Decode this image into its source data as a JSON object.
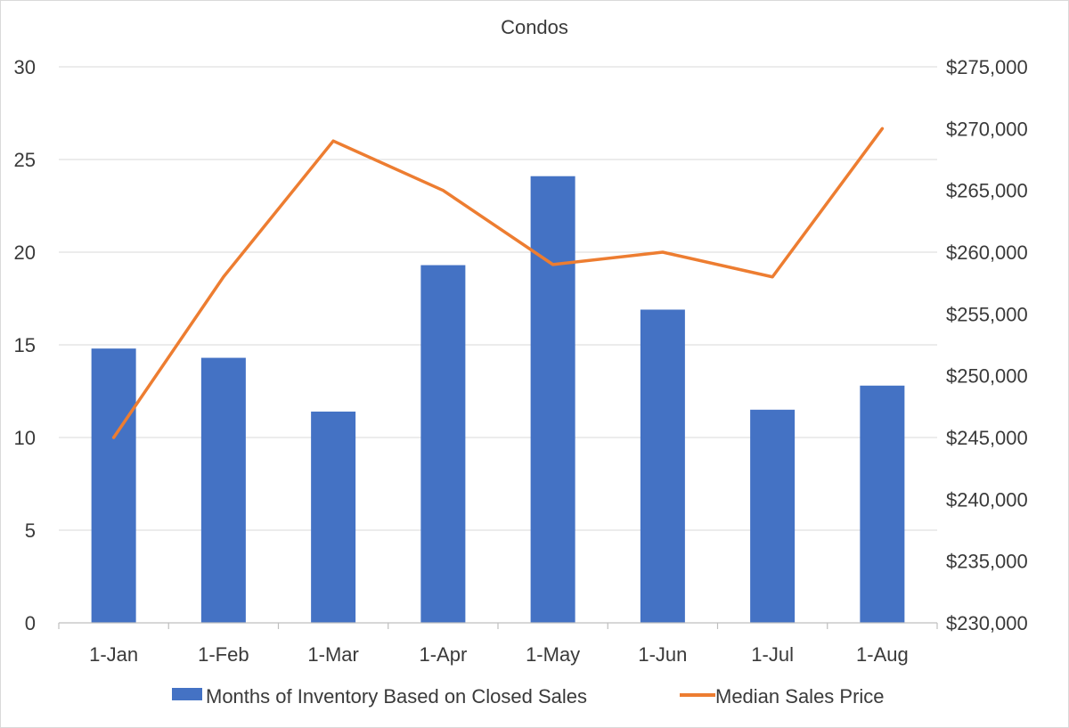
{
  "chart_data": {
    "type": "bar",
    "title": "Condos",
    "categories": [
      "1-Jan",
      "1-Feb",
      "1-Mar",
      "1-Apr",
      "1-May",
      "1-Jun",
      "1-Jul",
      "1-Aug"
    ],
    "series": [
      {
        "name": "Months of Inventory Based on Closed Sales",
        "type": "bar",
        "axis": "left",
        "color": "#4472C4",
        "values": [
          14.8,
          14.3,
          11.4,
          19.3,
          24.1,
          16.9,
          11.5,
          12.8
        ]
      },
      {
        "name": "Median Sales Price",
        "type": "line",
        "axis": "right",
        "color": "#ED7D31",
        "values": [
          245000,
          258000,
          269000,
          265000,
          259000,
          260000,
          258000,
          270000
        ]
      }
    ],
    "y_left": {
      "range": [
        0,
        30
      ],
      "ticks": [
        0,
        5,
        10,
        15,
        20,
        25,
        30
      ],
      "tick_labels": [
        "0",
        "5",
        "10",
        "15",
        "20",
        "25",
        "30"
      ]
    },
    "y_right": {
      "range": [
        230000,
        275000
      ],
      "ticks": [
        230000,
        235000,
        240000,
        245000,
        250000,
        255000,
        260000,
        265000,
        270000,
        275000
      ],
      "tick_labels": [
        "$230,000",
        "$235,000",
        "$240,000",
        "$245,000",
        "$250,000",
        "$255,000",
        "$260,000",
        "$265,000",
        "$270,000",
        "$275,000"
      ]
    },
    "grid": true,
    "legend_position": "bottom",
    "gridline_color": "#D9D9D9",
    "axis_color": "#BFBFBF",
    "text_color": "#3A3A3A"
  }
}
